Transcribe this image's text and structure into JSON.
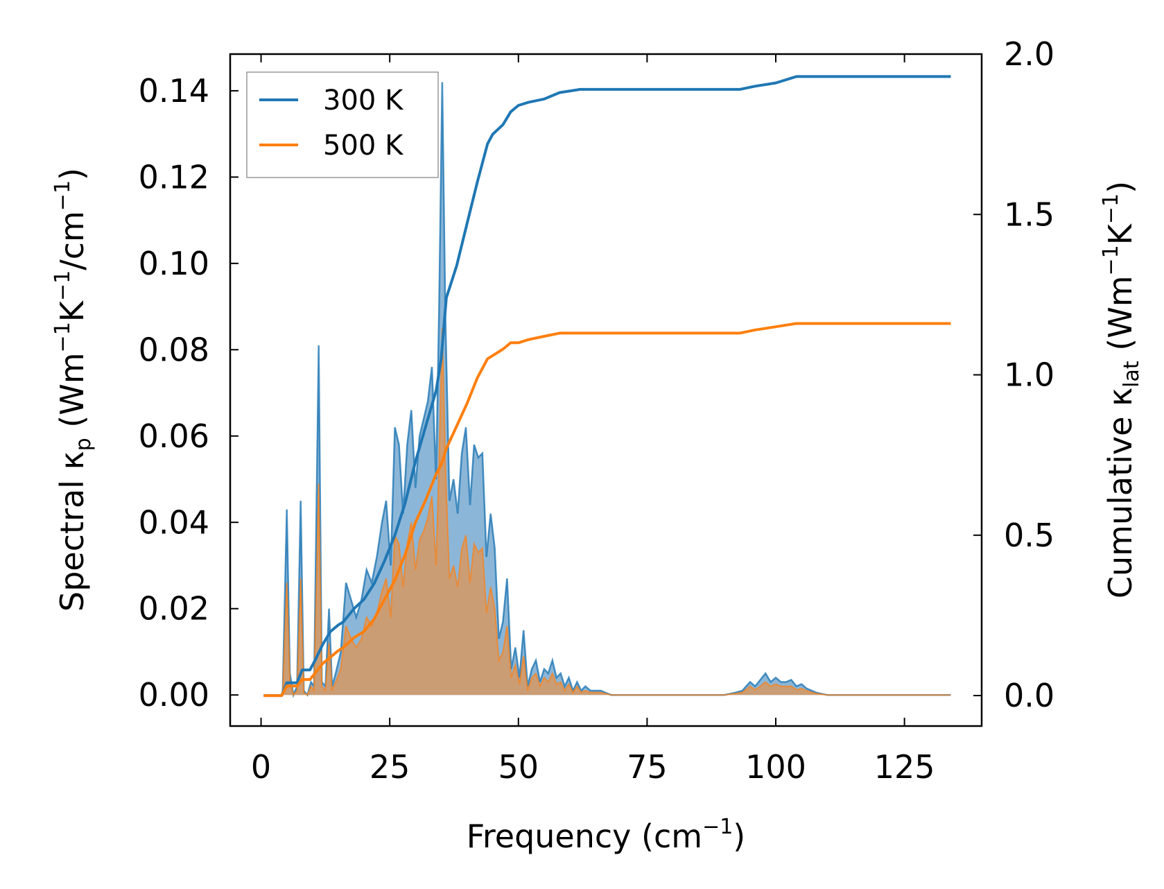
{
  "chart_data": {
    "type": "area+line",
    "xlabel": "Frequency (cm",
    "xlabel_sup": "−1",
    "xlabel_tail": ")",
    "ylabel_left": {
      "p1": "Spectral κ",
      "sub": "p",
      "p2": " (Wm",
      "sup1": "−1",
      "p3": "K",
      "sup2": "−1",
      "p4": "/cm",
      "sup3": "−1",
      "p5": ")"
    },
    "ylabel_right": {
      "p1": "Cumulative κ",
      "sub": "lat",
      "p2": " (Wm",
      "sup1": "−1",
      "p3": "K",
      "sup2": "−1",
      "p4": ")"
    },
    "xlim": [
      -6,
      140
    ],
    "ylim_left": [
      -0.0072,
      0.1485
    ],
    "ylim_right": [
      -0.095,
      2.0
    ],
    "xticks": [
      0,
      25,
      50,
      75,
      100,
      125
    ],
    "xtick_labels": [
      "0",
      "25",
      "50",
      "75",
      "100",
      "125"
    ],
    "yticks_left": [
      0.0,
      0.02,
      0.04,
      0.06,
      0.08,
      0.1,
      0.12,
      0.14
    ],
    "ytick_labels_left": [
      "0.00",
      "0.02",
      "0.04",
      "0.06",
      "0.08",
      "0.10",
      "0.12",
      "0.14"
    ],
    "yticks_right": [
      0.0,
      0.5,
      1.0,
      1.5,
      2.0
    ],
    "ytick_labels_right": [
      "0.0",
      "0.5",
      "1.0",
      "1.5",
      "2.0"
    ],
    "legend_position": "top-left",
    "colors": {
      "s300": "#1f77b4",
      "s500": "#ff7f0e",
      "fill300": "#6fa4cd",
      "fill500": "#d19a6a"
    },
    "spectral_x": [
      0.5,
      2,
      3.5,
      4.2,
      5.0,
      5.6,
      6.3,
      7.0,
      7.7,
      8.3,
      9.0,
      9.7,
      10.3,
      11.2,
      11.8,
      12.5,
      13.2,
      13.8,
      14.5,
      15.5,
      16.5,
      17.5,
      18.5,
      19.5,
      20.5,
      21.5,
      22.5,
      23.5,
      24.3,
      25.2,
      26.0,
      26.8,
      27.6,
      28.4,
      29.2,
      30.0,
      30.8,
      31.6,
      32.4,
      33.2,
      34.0,
      34.6,
      35.2,
      35.8,
      36.6,
      37.4,
      38.2,
      39.0,
      39.8,
      40.6,
      41.4,
      42.2,
      43.0,
      43.8,
      44.6,
      45.4,
      46.2,
      47.0,
      47.8,
      48.6,
      49.4,
      50.2,
      51.0,
      51.8,
      52.6,
      53.4,
      54.2,
      55.0,
      55.8,
      56.6,
      57.4,
      58.2,
      59.0,
      59.8,
      60.6,
      61.4,
      62.2,
      63.0,
      64.0,
      65.0,
      66.0,
      67.0,
      68.0,
      70.0,
      75.0,
      80.0,
      85.0,
      90.0,
      92.0,
      93.5,
      95.0,
      96.0,
      97.0,
      98.0,
      99.0,
      100.0,
      101.0,
      102.0,
      103.0,
      104.0,
      105.0,
      106.0,
      107.0,
      108.0,
      110.0,
      115.0,
      120.0,
      125.0,
      130.0,
      134.0
    ],
    "spectral_300": [
      0,
      0,
      0,
      0,
      0.043,
      0.005,
      0,
      0.002,
      0.045,
      0.001,
      0,
      0.003,
      0.002,
      0.081,
      0.003,
      0.002,
      0.02,
      0.002,
      0.005,
      0.01,
      0.026,
      0.022,
      0.018,
      0.022,
      0.029,
      0.026,
      0.032,
      0.04,
      0.045,
      0.03,
      0.062,
      0.058,
      0.042,
      0.058,
      0.066,
      0.048,
      0.06,
      0.064,
      0.068,
      0.076,
      0.05,
      0.09,
      0.142,
      0.088,
      0.045,
      0.05,
      0.042,
      0.056,
      0.062,
      0.044,
      0.058,
      0.055,
      0.056,
      0.032,
      0.042,
      0.034,
      0.013,
      0.017,
      0.027,
      0.006,
      0.011,
      0.004,
      0.015,
      0.002,
      0.006,
      0.008,
      0.003,
      0.006,
      0.005,
      0.008,
      0.004,
      0.005,
      0.002,
      0.004,
      0.001,
      0.003,
      0.001,
      0.002,
      0.001,
      0.001,
      0.001,
      0.0005,
      0,
      0,
      0,
      0,
      0,
      0,
      0.0005,
      0.001,
      0.003,
      0.002,
      0.0035,
      0.005,
      0.003,
      0.004,
      0.003,
      0.003,
      0.0035,
      0.002,
      0.0025,
      0.0015,
      0.001,
      0.0005,
      0,
      0,
      0,
      0,
      0,
      0
    ],
    "spectral_500": [
      0,
      0,
      0,
      0,
      0.026,
      0.003,
      0,
      0.001,
      0.027,
      0.0005,
      0,
      0.002,
      0.001,
      0.049,
      0.002,
      0.001,
      0.012,
      0.001,
      0.003,
      0.006,
      0.016,
      0.013,
      0.011,
      0.013,
      0.018,
      0.016,
      0.019,
      0.024,
      0.027,
      0.018,
      0.037,
      0.035,
      0.025,
      0.035,
      0.04,
      0.029,
      0.036,
      0.038,
      0.041,
      0.046,
      0.03,
      0.054,
      0.085,
      0.053,
      0.027,
      0.03,
      0.025,
      0.034,
      0.037,
      0.026,
      0.035,
      0.033,
      0.034,
      0.019,
      0.025,
      0.02,
      0.008,
      0.01,
      0.016,
      0.004,
      0.007,
      0.0025,
      0.009,
      0.001,
      0.004,
      0.005,
      0.002,
      0.004,
      0.003,
      0.005,
      0.0025,
      0.003,
      0.001,
      0.0025,
      0.0006,
      0.002,
      0.0006,
      0.001,
      0.0006,
      0.0006,
      0.0006,
      0.0003,
      0,
      0,
      0,
      0,
      0,
      0,
      0.0003,
      0.0006,
      0.002,
      0.0012,
      0.002,
      0.003,
      0.002,
      0.0025,
      0.002,
      0.002,
      0.002,
      0.0012,
      0.0015,
      0.001,
      0.0006,
      0.0003,
      0,
      0,
      0,
      0,
      0,
      0
    ],
    "cum_x": [
      0.5,
      4.0,
      5.0,
      7.0,
      8.0,
      9.5,
      10.5,
      12.0,
      13.5,
      15.0,
      16.0,
      18.0,
      20.0,
      22.0,
      24.0,
      26.0,
      28.0,
      30.0,
      32.0,
      34.0,
      35.0,
      36.0,
      38.0,
      40.0,
      42.0,
      44.0,
      45.0,
      47.0,
      48.5,
      50.0,
      52.0,
      55.0,
      58.0,
      62.0,
      66.0,
      70.0,
      80.0,
      90.0,
      93.0,
      96.0,
      100.0,
      104.0,
      107.0,
      110.0,
      120.0,
      134.0
    ],
    "cum_300": [
      0,
      0,
      0.04,
      0.04,
      0.08,
      0.08,
      0.11,
      0.16,
      0.2,
      0.22,
      0.23,
      0.27,
      0.3,
      0.35,
      0.42,
      0.5,
      0.6,
      0.73,
      0.84,
      0.95,
      1.05,
      1.24,
      1.34,
      1.47,
      1.6,
      1.72,
      1.75,
      1.78,
      1.82,
      1.84,
      1.85,
      1.86,
      1.88,
      1.89,
      1.89,
      1.89,
      1.89,
      1.89,
      1.89,
      1.9,
      1.91,
      1.93,
      1.93,
      1.93,
      1.93,
      1.93
    ],
    "cum_500": [
      0,
      0,
      0.03,
      0.03,
      0.05,
      0.05,
      0.07,
      0.1,
      0.12,
      0.14,
      0.15,
      0.18,
      0.2,
      0.24,
      0.3,
      0.36,
      0.44,
      0.54,
      0.61,
      0.69,
      0.72,
      0.77,
      0.84,
      0.91,
      0.99,
      1.05,
      1.06,
      1.08,
      1.1,
      1.1,
      1.11,
      1.12,
      1.13,
      1.13,
      1.13,
      1.13,
      1.13,
      1.13,
      1.13,
      1.14,
      1.15,
      1.16,
      1.16,
      1.16,
      1.16,
      1.16
    ],
    "series": [
      {
        "name": "300 K",
        "color": "#1f77b4"
      },
      {
        "name": "500 K",
        "color": "#ff7f0e"
      }
    ]
  }
}
